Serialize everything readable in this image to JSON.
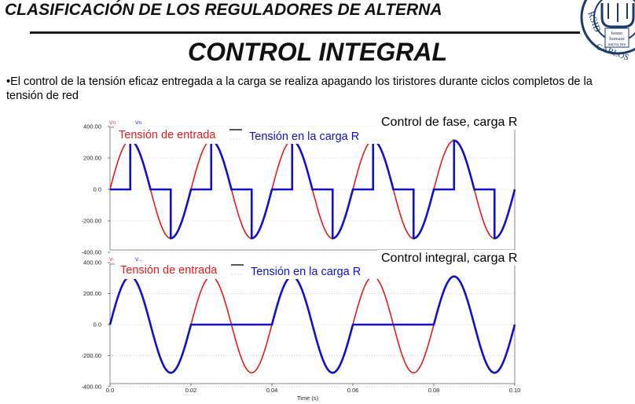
{
  "header": {
    "title": "CLASIFICACIÓN DE LOS REGULADORES DE ALTERNA"
  },
  "logo": {
    "ring_text": "RSIDAD CARLOS",
    "inner_text": "homo humani sacra res",
    "color": "#1b3a6b"
  },
  "slide": {
    "title": "CONTROL INTEGRAL",
    "bullet": "•El control de la tensión eficaz entregada a la carga se realiza apagando los tiristores durante ciclos completos de la tensión de red"
  },
  "colors": {
    "input": "#e41a1c",
    "load": "#1010c8"
  },
  "chart_data": [
    {
      "type": "line",
      "title": "Control de fase, carga R",
      "ylabel": "",
      "yticks": [
        "400.00",
        "200.00",
        "0.0",
        "-200.00",
        "-400.00"
      ],
      "ylim": [
        -450,
        450
      ],
      "xlim": [
        0,
        0.1
      ],
      "tiny_legend": [
        "Vn",
        "Vn"
      ],
      "series": [
        {
          "name": "Tensión de entrada",
          "amplitude": 311,
          "frequency_hz": 50,
          "color": "#e41a1c"
        },
        {
          "name": "Tensión en la carga R",
          "amplitude": 311,
          "frequency_hz": 50,
          "firing_angle_deg": 90,
          "color": "#1010c8"
        }
      ]
    },
    {
      "type": "line",
      "title": "Control integral, carga R",
      "ylabel": "",
      "yticks": [
        "400.00",
        "200.00",
        "0.0",
        "-200.00",
        "-400.00"
      ],
      "ylim": [
        -450,
        450
      ],
      "xlim": [
        0,
        0.1
      ],
      "xticks": [
        "0.0",
        "0.02",
        "0.04",
        "0.06",
        "0.08",
        "0.10"
      ],
      "xlabel": "Time (s)",
      "tiny_legend": [
        "V-",
        "V..."
      ],
      "series": [
        {
          "name": "Tensión de entrada",
          "amplitude": 311,
          "frequency_hz": 50,
          "color": "#e41a1c"
        },
        {
          "name": "Tensión en la carga R",
          "amplitude": 311,
          "frequency_hz": 50,
          "conducting_cycles": [
            [
              0,
              0.02
            ],
            [
              0.04,
              0.06
            ],
            [
              0.08,
              0.1
            ]
          ],
          "color": "#1010c8"
        }
      ]
    }
  ]
}
